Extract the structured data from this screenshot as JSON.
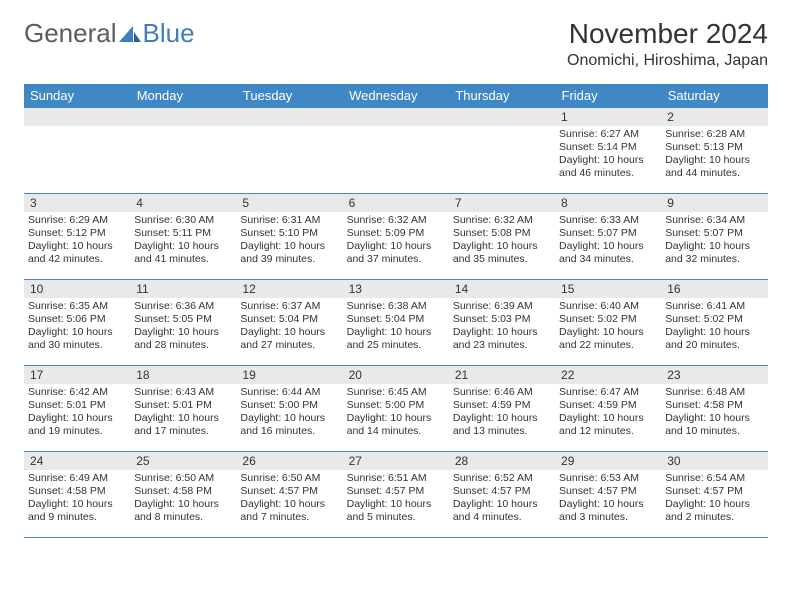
{
  "logo": {
    "text1": "General",
    "text2": "Blue"
  },
  "title": "November 2024",
  "location": "Onomichi, Hiroshima, Japan",
  "colors": {
    "header_bg": "#3f88c5",
    "header_text": "#ffffff",
    "daynum_bg": "#e9e9e9",
    "border": "#3f88c5",
    "text": "#333333",
    "logo_gray": "#5c5c5c",
    "logo_blue": "#3f7ebc"
  },
  "typography": {
    "title_fontsize": 28,
    "location_fontsize": 16,
    "weekday_fontsize": 13,
    "daynum_fontsize": 12,
    "body_fontsize": 10.5
  },
  "weekdays": [
    "Sunday",
    "Monday",
    "Tuesday",
    "Wednesday",
    "Thursday",
    "Friday",
    "Saturday"
  ],
  "weeks": [
    [
      null,
      null,
      null,
      null,
      null,
      {
        "n": "1",
        "sr": "6:27 AM",
        "ss": "5:14 PM",
        "dl": "10 hours and 46 minutes."
      },
      {
        "n": "2",
        "sr": "6:28 AM",
        "ss": "5:13 PM",
        "dl": "10 hours and 44 minutes."
      }
    ],
    [
      {
        "n": "3",
        "sr": "6:29 AM",
        "ss": "5:12 PM",
        "dl": "10 hours and 42 minutes."
      },
      {
        "n": "4",
        "sr": "6:30 AM",
        "ss": "5:11 PM",
        "dl": "10 hours and 41 minutes."
      },
      {
        "n": "5",
        "sr": "6:31 AM",
        "ss": "5:10 PM",
        "dl": "10 hours and 39 minutes."
      },
      {
        "n": "6",
        "sr": "6:32 AM",
        "ss": "5:09 PM",
        "dl": "10 hours and 37 minutes."
      },
      {
        "n": "7",
        "sr": "6:32 AM",
        "ss": "5:08 PM",
        "dl": "10 hours and 35 minutes."
      },
      {
        "n": "8",
        "sr": "6:33 AM",
        "ss": "5:07 PM",
        "dl": "10 hours and 34 minutes."
      },
      {
        "n": "9",
        "sr": "6:34 AM",
        "ss": "5:07 PM",
        "dl": "10 hours and 32 minutes."
      }
    ],
    [
      {
        "n": "10",
        "sr": "6:35 AM",
        "ss": "5:06 PM",
        "dl": "10 hours and 30 minutes."
      },
      {
        "n": "11",
        "sr": "6:36 AM",
        "ss": "5:05 PM",
        "dl": "10 hours and 28 minutes."
      },
      {
        "n": "12",
        "sr": "6:37 AM",
        "ss": "5:04 PM",
        "dl": "10 hours and 27 minutes."
      },
      {
        "n": "13",
        "sr": "6:38 AM",
        "ss": "5:04 PM",
        "dl": "10 hours and 25 minutes."
      },
      {
        "n": "14",
        "sr": "6:39 AM",
        "ss": "5:03 PM",
        "dl": "10 hours and 23 minutes."
      },
      {
        "n": "15",
        "sr": "6:40 AM",
        "ss": "5:02 PM",
        "dl": "10 hours and 22 minutes."
      },
      {
        "n": "16",
        "sr": "6:41 AM",
        "ss": "5:02 PM",
        "dl": "10 hours and 20 minutes."
      }
    ],
    [
      {
        "n": "17",
        "sr": "6:42 AM",
        "ss": "5:01 PM",
        "dl": "10 hours and 19 minutes."
      },
      {
        "n": "18",
        "sr": "6:43 AM",
        "ss": "5:01 PM",
        "dl": "10 hours and 17 minutes."
      },
      {
        "n": "19",
        "sr": "6:44 AM",
        "ss": "5:00 PM",
        "dl": "10 hours and 16 minutes."
      },
      {
        "n": "20",
        "sr": "6:45 AM",
        "ss": "5:00 PM",
        "dl": "10 hours and 14 minutes."
      },
      {
        "n": "21",
        "sr": "6:46 AM",
        "ss": "4:59 PM",
        "dl": "10 hours and 13 minutes."
      },
      {
        "n": "22",
        "sr": "6:47 AM",
        "ss": "4:59 PM",
        "dl": "10 hours and 12 minutes."
      },
      {
        "n": "23",
        "sr": "6:48 AM",
        "ss": "4:58 PM",
        "dl": "10 hours and 10 minutes."
      }
    ],
    [
      {
        "n": "24",
        "sr": "6:49 AM",
        "ss": "4:58 PM",
        "dl": "10 hours and 9 minutes."
      },
      {
        "n": "25",
        "sr": "6:50 AM",
        "ss": "4:58 PM",
        "dl": "10 hours and 8 minutes."
      },
      {
        "n": "26",
        "sr": "6:50 AM",
        "ss": "4:57 PM",
        "dl": "10 hours and 7 minutes."
      },
      {
        "n": "27",
        "sr": "6:51 AM",
        "ss": "4:57 PM",
        "dl": "10 hours and 5 minutes."
      },
      {
        "n": "28",
        "sr": "6:52 AM",
        "ss": "4:57 PM",
        "dl": "10 hours and 4 minutes."
      },
      {
        "n": "29",
        "sr": "6:53 AM",
        "ss": "4:57 PM",
        "dl": "10 hours and 3 minutes."
      },
      {
        "n": "30",
        "sr": "6:54 AM",
        "ss": "4:57 PM",
        "dl": "10 hours and 2 minutes."
      }
    ]
  ],
  "labels": {
    "sunrise": "Sunrise: ",
    "sunset": "Sunset: ",
    "daylight": "Daylight: "
  }
}
